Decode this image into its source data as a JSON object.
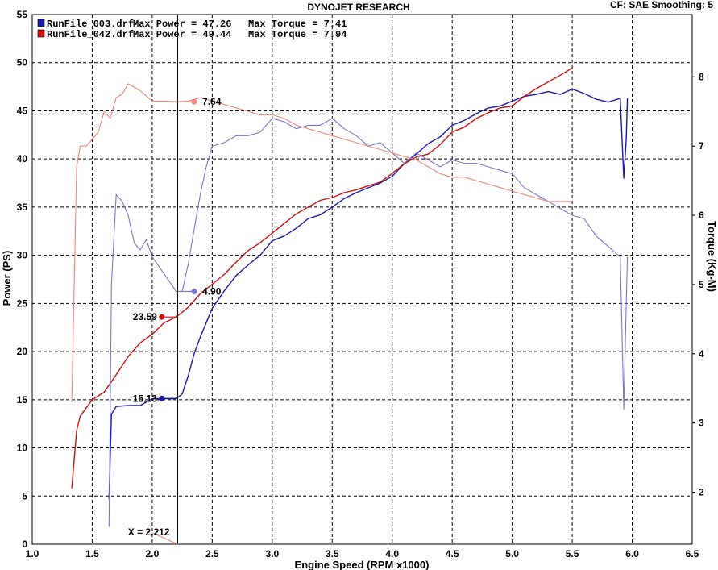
{
  "chart_data": {
    "type": "line",
    "title": "DYNOJET RESEARCH",
    "header_right": "CF: SAE   Smoothing: 5",
    "xlabel": "Engine Speed (RPM x1000)",
    "ylabel_left": "Power (PS)",
    "ylabel_right": "Torque (Kg-M)",
    "xlim": [
      1.0,
      6.5
    ],
    "ylim_left": [
      0,
      55
    ],
    "ylim_right": [
      1.25,
      8.9
    ],
    "grid": true,
    "x_ticks": [
      "1.0",
      "1.5",
      "2.0",
      "2.5",
      "3.0",
      "3.5",
      "4.0",
      "4.5",
      "5.0",
      "5.5",
      "6.0",
      "6.5"
    ],
    "y_ticks_left": [
      "0",
      "5",
      "10",
      "15",
      "20",
      "25",
      "30",
      "35",
      "40",
      "45",
      "50",
      "55"
    ],
    "y_ticks_right": [
      "2",
      "3",
      "4",
      "5",
      "6",
      "7",
      "8"
    ],
    "legend": [
      {
        "file": "RunFile_003.drf",
        "max_power": "Max Power = 47.26",
        "max_torque": "Max Torque = 7.41",
        "color": "#1a1aa6"
      },
      {
        "file": "RunFile_042.drf",
        "max_power": "Max Power = 49.44",
        "max_torque": "Max Torque = 7.94",
        "color": "#cc1111"
      }
    ],
    "cursor": {
      "label": "X = 2.212",
      "x": 2.212
    },
    "series": [
      {
        "name": "RunFile_003.drf",
        "kind": "power",
        "axis": "left",
        "color": "#1a1aa6",
        "x": [
          1.64,
          1.66,
          1.7,
          1.8,
          1.9,
          2.0,
          2.1,
          2.2,
          2.25,
          2.3,
          2.35,
          2.4,
          2.5,
          2.6,
          2.7,
          2.8,
          2.9,
          3.0,
          3.1,
          3.2,
          3.3,
          3.4,
          3.5,
          3.6,
          3.7,
          3.8,
          3.9,
          4.0,
          4.1,
          4.2,
          4.3,
          4.4,
          4.5,
          4.6,
          4.7,
          4.8,
          4.9,
          5.0,
          5.1,
          5.2,
          5.3,
          5.4,
          5.5,
          5.6,
          5.7,
          5.8,
          5.9,
          5.93,
          5.95,
          5.96
        ],
        "y": [
          4.7,
          13.5,
          14.3,
          14.4,
          14.4,
          15.1,
          15.1,
          15.1,
          15.6,
          17.5,
          19.8,
          21.5,
          24.5,
          26.3,
          27.9,
          29.0,
          30.0,
          31.5,
          32.0,
          32.8,
          33.8,
          34.2,
          35.0,
          35.9,
          36.5,
          37.0,
          37.5,
          38.2,
          39.5,
          40.5,
          41.6,
          42.3,
          43.5,
          44.0,
          44.7,
          45.3,
          45.5,
          46.0,
          46.5,
          46.7,
          47.0,
          46.7,
          47.26,
          46.8,
          46.2,
          45.9,
          46.3,
          38.0,
          42.0,
          46.3
        ]
      },
      {
        "name": "RunFile_042.drf",
        "kind": "power",
        "axis": "left",
        "color": "#cc1111",
        "x": [
          1.33,
          1.37,
          1.4,
          1.5,
          1.6,
          1.7,
          1.8,
          1.9,
          2.0,
          2.1,
          2.2,
          2.3,
          2.4,
          2.5,
          2.6,
          2.7,
          2.8,
          2.9,
          3.0,
          3.1,
          3.2,
          3.3,
          3.4,
          3.5,
          3.6,
          3.7,
          3.8,
          3.9,
          4.0,
          4.1,
          4.2,
          4.3,
          4.4,
          4.5,
          4.6,
          4.7,
          4.8,
          4.9,
          5.0,
          5.1,
          5.2,
          5.3,
          5.4,
          5.5
        ],
        "y": [
          5.8,
          11.8,
          13.3,
          15.0,
          15.8,
          17.6,
          19.5,
          20.9,
          21.8,
          23.0,
          23.59,
          24.6,
          26.0,
          27.0,
          28.0,
          29.3,
          30.5,
          31.3,
          32.3,
          33.3,
          34.3,
          35.0,
          35.7,
          36.0,
          36.5,
          36.8,
          37.2,
          37.6,
          38.5,
          39.5,
          40.2,
          40.5,
          41.5,
          42.8,
          43.3,
          44.2,
          44.8,
          45.3,
          45.5,
          46.5,
          47.3,
          48.0,
          48.7,
          49.44
        ]
      },
      {
        "name": "RunFile_003.drf",
        "kind": "torque",
        "axis": "right",
        "color": "#7777cc",
        "x": [
          1.64,
          1.66,
          1.7,
          1.75,
          1.8,
          1.85,
          1.9,
          1.95,
          2.0,
          2.1,
          2.2,
          2.25,
          2.3,
          2.35,
          2.4,
          2.45,
          2.5,
          2.6,
          2.7,
          2.8,
          2.9,
          3.0,
          3.1,
          3.2,
          3.3,
          3.4,
          3.5,
          3.6,
          3.7,
          3.8,
          3.9,
          4.0,
          4.1,
          4.2,
          4.3,
          4.4,
          4.5,
          4.6,
          4.7,
          4.8,
          4.9,
          5.0,
          5.1,
          5.2,
          5.3,
          5.4,
          5.5,
          5.6,
          5.7,
          5.8,
          5.9,
          5.93,
          5.95,
          5.96
        ],
        "y": [
          1.5,
          5.0,
          6.3,
          6.2,
          6.0,
          5.6,
          5.5,
          5.65,
          5.4,
          5.15,
          4.9,
          4.9,
          5.3,
          5.8,
          6.3,
          6.7,
          7.0,
          7.05,
          7.15,
          7.15,
          7.2,
          7.4,
          7.35,
          7.25,
          7.3,
          7.3,
          7.4,
          7.25,
          7.15,
          7.0,
          7.05,
          6.9,
          6.75,
          6.9,
          6.8,
          6.7,
          6.8,
          6.75,
          6.75,
          6.7,
          6.65,
          6.6,
          6.4,
          6.3,
          6.2,
          6.1,
          6.0,
          5.95,
          5.7,
          5.55,
          5.4,
          3.2,
          4.7,
          5.4
        ]
      },
      {
        "name": "RunFile_042.drf",
        "kind": "torque",
        "axis": "right",
        "color": "#ee8877",
        "x": [
          1.33,
          1.37,
          1.4,
          1.45,
          1.5,
          1.55,
          1.6,
          1.65,
          1.7,
          1.75,
          1.8,
          1.9,
          2.0,
          2.1,
          2.2,
          2.3,
          2.4,
          2.5,
          2.6,
          2.7,
          2.8,
          2.9,
          3.0,
          3.1,
          3.2,
          3.3,
          3.4,
          3.5,
          3.6,
          3.7,
          3.8,
          3.9,
          4.0,
          4.1,
          4.2,
          4.3,
          4.4,
          4.5,
          4.6,
          4.7,
          4.8,
          4.9,
          5.0,
          5.1,
          5.2,
          5.3,
          5.4,
          5.5
        ],
        "y": [
          3.3,
          6.7,
          7.0,
          7.0,
          7.1,
          7.2,
          7.5,
          7.4,
          7.7,
          7.75,
          7.9,
          7.8,
          7.65,
          7.65,
          7.64,
          7.65,
          7.7,
          7.65,
          7.6,
          7.55,
          7.5,
          7.45,
          7.45,
          7.4,
          7.3,
          7.25,
          7.2,
          7.15,
          7.1,
          7.05,
          7.0,
          6.95,
          6.9,
          6.85,
          6.8,
          6.7,
          6.6,
          6.55,
          6.55,
          6.5,
          6.45,
          6.4,
          6.35,
          6.3,
          6.25,
          6.2,
          6.2,
          6.2
        ]
      }
    ],
    "cursor_points": [
      {
        "name": "RunFile_003.drf power",
        "axis": "left",
        "x": 2.08,
        "y": 15.13,
        "label": "15.13",
        "color": "#1a1aa6",
        "side": "left"
      },
      {
        "name": "RunFile_042.drf power",
        "axis": "left",
        "x": 2.08,
        "y": 23.59,
        "label": "23.59",
        "color": "#cc1111",
        "side": "left"
      },
      {
        "name": "RunFile_003.drf torque",
        "axis": "right",
        "x": 2.35,
        "y": 4.9,
        "label": "4.90",
        "color": "#7777cc",
        "side": "right"
      },
      {
        "name": "RunFile_042.drf torque",
        "axis": "right",
        "x": 2.35,
        "y": 7.64,
        "label": "7.64",
        "color": "#ee8877",
        "side": "right"
      }
    ]
  }
}
